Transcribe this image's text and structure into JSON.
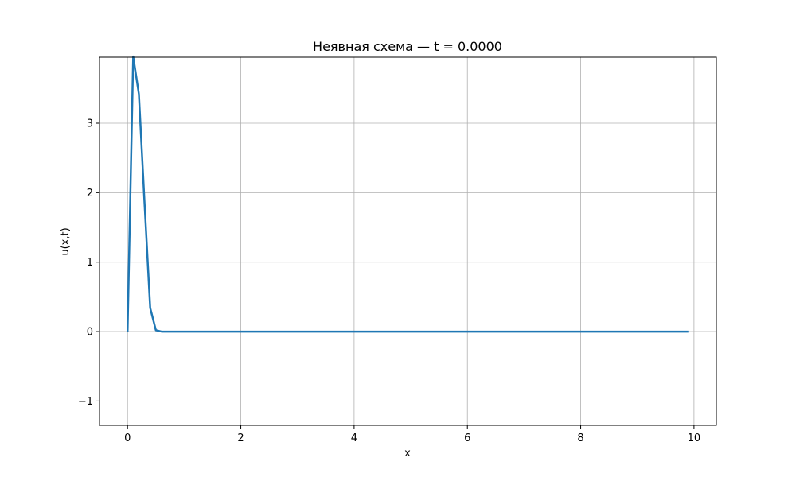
{
  "chart_data": {
    "type": "line",
    "title": "Неявная схема — t = 0.0000",
    "xlabel": "x",
    "ylabel": "u(x,t)",
    "xlim": [
      -0.495,
      10.395
    ],
    "ylim": [
      -1.35,
      3.95
    ],
    "xticks": [
      0,
      2,
      4,
      6,
      8,
      10
    ],
    "yticks": [
      -1,
      0,
      1,
      2,
      3
    ],
    "ytick_labels": [
      "−1",
      "0",
      "1",
      "2",
      "3"
    ],
    "grid": true,
    "series": [
      {
        "color": "#1f77b4",
        "x": [
          0,
          0.1,
          0.2,
          0.3,
          0.4,
          0.5,
          0.6,
          1,
          2,
          3,
          4,
          5,
          6,
          7,
          8,
          9,
          9.9
        ],
        "y": [
          0,
          3.96,
          3.42,
          1.85,
          0.34,
          0.02,
          0.0,
          0,
          0,
          0,
          0,
          0,
          0,
          0,
          0,
          0,
          0
        ]
      }
    ]
  }
}
